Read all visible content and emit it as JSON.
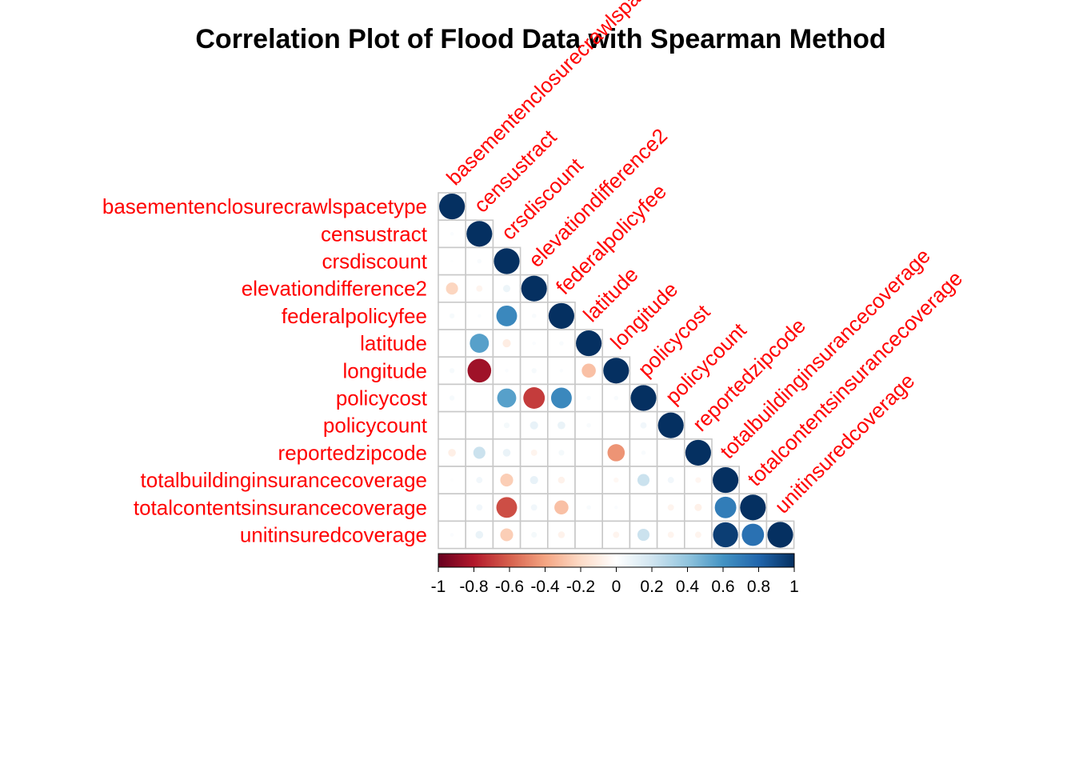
{
  "chart_data": {
    "type": "heatmap",
    "title": "Correlation Plot of Flood Data with Spearman Method",
    "method": "circle",
    "layout": "lower-triangle",
    "label_color": "#ff0000",
    "variables": [
      "basementenclosurecrawlspacetype",
      "censustract",
      "crsdiscount",
      "elevationdifference2",
      "federalpolicyfee",
      "latitude",
      "longitude",
      "policycost",
      "policycount",
      "reportedzipcode",
      "totalbuildinginsurancecoverage",
      "totalcontentsinsurancecoverage",
      "unitinsuredcoverage"
    ],
    "matrix": [
      [
        1
      ],
      [
        0.02,
        1
      ],
      [
        0.01,
        0.03,
        1
      ],
      [
        -0.22,
        -0.06,
        0.08,
        1
      ],
      [
        0.04,
        0.02,
        0.65,
        0.03,
        1
      ],
      [
        0.0,
        0.55,
        -0.1,
        0.02,
        0.03,
        1
      ],
      [
        0.04,
        -0.85,
        0.02,
        0.04,
        0.02,
        -0.3,
        1
      ],
      [
        0.04,
        0.0,
        0.55,
        -0.7,
        0.65,
        0.03,
        0.03,
        1
      ],
      [
        0.0,
        0.0,
        0.05,
        0.1,
        0.09,
        0.03,
        0.0,
        0.06,
        1
      ],
      [
        -0.09,
        0.22,
        0.09,
        -0.06,
        0.05,
        0.0,
        -0.45,
        0.03,
        0.0,
        1
      ],
      [
        0.01,
        0.06,
        -0.25,
        0.1,
        -0.07,
        0.0,
        -0.04,
        0.22,
        0.06,
        -0.05,
        1
      ],
      [
        0.0,
        0.06,
        -0.65,
        0.06,
        -0.3,
        0.03,
        0.02,
        0.0,
        -0.06,
        -0.08,
        0.7,
        1
      ],
      [
        0.02,
        0.09,
        -0.25,
        0.05,
        -0.07,
        0.0,
        -0.06,
        0.22,
        -0.06,
        -0.06,
        0.95,
        0.75,
        1
      ]
    ],
    "colorbar": {
      "ticks": [
        "-1",
        "-0.8",
        "-0.6",
        "-0.4",
        "-0.2",
        "0",
        "0.2",
        "0.4",
        "0.6",
        "0.8",
        "1"
      ],
      "range": [
        -1,
        1
      ],
      "colors": [
        "#67001f",
        "#b2182b",
        "#d6604d",
        "#f4a582",
        "#fddbc7",
        "#ffffff",
        "#d1e5f0",
        "#92c5de",
        "#4393c3",
        "#2166ac",
        "#053061"
      ]
    }
  }
}
